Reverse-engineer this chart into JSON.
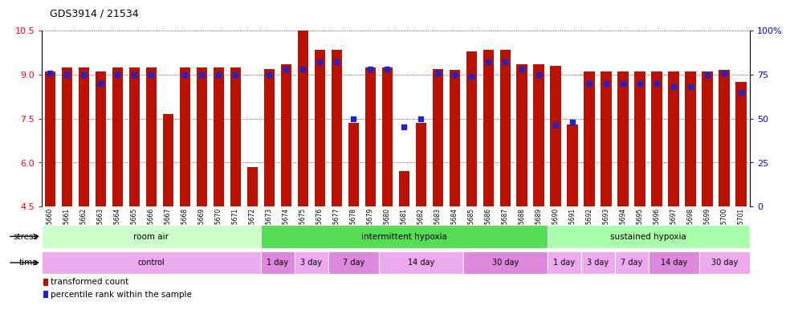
{
  "title": "GDS3914 / 21534",
  "ylim_left": [
    4.5,
    10.5
  ],
  "ylim_right": [
    0,
    100
  ],
  "yticks_left": [
    4.5,
    6.0,
    7.5,
    9.0,
    10.5
  ],
  "ytick_labels_right": [
    "0",
    "25",
    "50",
    "75",
    "100%"
  ],
  "ytick_values_right": [
    0,
    25,
    50,
    75,
    100
  ],
  "bar_color": "#BB1100",
  "dot_color": "#2222CC",
  "categories": [
    "GSM215660",
    "GSM215661",
    "GSM215662",
    "GSM215663",
    "GSM215664",
    "GSM215665",
    "GSM215666",
    "GSM215667",
    "GSM215668",
    "GSM215669",
    "GSM215670",
    "GSM215671",
    "GSM215672",
    "GSM215673",
    "GSM215674",
    "GSM215675",
    "GSM215676",
    "GSM215677",
    "GSM215678",
    "GSM215679",
    "GSM215680",
    "GSM215681",
    "GSM215682",
    "GSM215683",
    "GSM215684",
    "GSM215685",
    "GSM215686",
    "GSM215687",
    "GSM215688",
    "GSM215689",
    "GSM215690",
    "GSM215691",
    "GSM215692",
    "GSM215693",
    "GSM215694",
    "GSM215695",
    "GSM215696",
    "GSM215697",
    "GSM215698",
    "GSM215699",
    "GSM215700",
    "GSM215701"
  ],
  "red_values": [
    9.1,
    9.25,
    9.25,
    9.1,
    9.25,
    9.25,
    9.25,
    7.65,
    9.25,
    9.25,
    9.25,
    9.25,
    5.85,
    9.2,
    9.35,
    10.5,
    9.85,
    9.85,
    7.35,
    9.25,
    9.25,
    5.7,
    7.35,
    9.2,
    9.15,
    9.8,
    9.85,
    9.85,
    9.35,
    9.35,
    9.3,
    7.3,
    9.1,
    9.1,
    9.1,
    9.1,
    9.1,
    9.1,
    9.1,
    9.1,
    9.15,
    8.75
  ],
  "blue_pct": [
    76,
    75,
    75,
    70,
    75,
    75,
    75,
    null,
    75,
    75,
    75,
    75,
    null,
    75,
    78,
    78,
    82,
    82,
    50,
    78,
    78,
    45,
    50,
    76,
    75,
    74,
    82,
    82,
    78,
    75,
    46,
    48,
    70,
    70,
    70,
    70,
    70,
    68,
    68,
    75,
    76,
    65
  ],
  "stress_groups": [
    {
      "label": "room air",
      "start": 0,
      "end": 13,
      "color": "#CCFFCC"
    },
    {
      "label": "intermittent hypoxia",
      "start": 13,
      "end": 30,
      "color": "#55DD55"
    },
    {
      "label": "sustained hypoxia",
      "start": 30,
      "end": 42,
      "color": "#AAFFAA"
    }
  ],
  "time_groups": [
    {
      "label": "control",
      "start": 0,
      "end": 13,
      "color": "#EEAAEE"
    },
    {
      "label": "1 day",
      "start": 13,
      "end": 15,
      "color": "#DD88DD"
    },
    {
      "label": "3 day",
      "start": 15,
      "end": 17,
      "color": "#EEAAEE"
    },
    {
      "label": "7 day",
      "start": 17,
      "end": 20,
      "color": "#DD88DD"
    },
    {
      "label": "14 day",
      "start": 20,
      "end": 25,
      "color": "#EEAAEE"
    },
    {
      "label": "30 day",
      "start": 25,
      "end": 30,
      "color": "#DD88DD"
    },
    {
      "label": "1 day",
      "start": 30,
      "end": 32,
      "color": "#EEAAEE"
    },
    {
      "label": "3 day",
      "start": 32,
      "end": 34,
      "color": "#EEAAEE"
    },
    {
      "label": "7 day",
      "start": 34,
      "end": 36,
      "color": "#EEAAEE"
    },
    {
      "label": "14 day",
      "start": 36,
      "end": 39,
      "color": "#DD88DD"
    },
    {
      "label": "30 day",
      "start": 39,
      "end": 42,
      "color": "#EEAAEE"
    }
  ],
  "legend_red": "transformed count",
  "legend_blue": "percentile rank within the sample"
}
